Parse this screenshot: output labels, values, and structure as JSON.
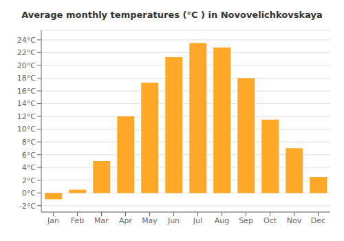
{
  "chart_data": {
    "type": "bar",
    "title": "Average monthly temperatures (°C ) in Novovelichkovskaya",
    "categories": [
      "Jan",
      "Feb",
      "Mar",
      "Apr",
      "May",
      "Jun",
      "Jul",
      "Aug",
      "Sep",
      "Oct",
      "Nov",
      "Dec"
    ],
    "values": [
      -1.0,
      0.5,
      5.0,
      12.0,
      17.3,
      21.3,
      23.5,
      22.8,
      18.0,
      11.5,
      7.0,
      2.5
    ],
    "color": "#FFA726",
    "ylim": [
      -3,
      25.5
    ],
    "yticks": [
      {
        "value": -2,
        "label": "-2°C"
      },
      {
        "value": 0,
        "label": "0°C"
      },
      {
        "value": 2,
        "label": "2°C"
      },
      {
        "value": 4,
        "label": "4°C"
      },
      {
        "value": 6,
        "label": "6°C"
      },
      {
        "value": 8,
        "label": "8°C"
      },
      {
        "value": 10,
        "label": "10°C"
      },
      {
        "value": 12,
        "label": "12°C"
      },
      {
        "value": 14,
        "label": "14°C"
      },
      {
        "value": 16,
        "label": "16°C"
      },
      {
        "value": 18,
        "label": "18°C"
      },
      {
        "value": 20,
        "label": "20°C"
      },
      {
        "value": 22,
        "label": "22°C"
      },
      {
        "value": 24,
        "label": "24°C"
      }
    ],
    "grid": true
  }
}
